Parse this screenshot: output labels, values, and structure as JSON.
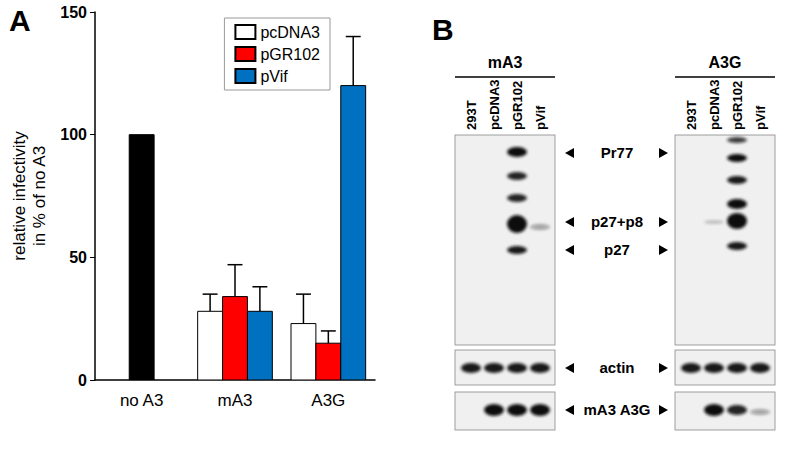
{
  "chart_data": {
    "type": "bar",
    "title": "A",
    "ylabel": "relative infectivity\nin % of no A3",
    "categories": [
      "no A3",
      "mA3",
      "A3G"
    ],
    "series": [
      {
        "color": "#000000",
        "values": [
          100,
          null,
          null
        ],
        "errors": [
          null,
          null,
          null
        ]
      },
      {
        "name": "pcDNA3",
        "color": "#ffffff",
        "values": [
          null,
          28,
          23
        ],
        "errors": [
          null,
          7,
          12
        ]
      },
      {
        "name": "pGR102",
        "color": "#ff0000",
        "values": [
          null,
          34,
          15
        ],
        "errors": [
          null,
          13,
          5
        ]
      },
      {
        "name": "pVif",
        "color": "#0070c0",
        "values": [
          null,
          28,
          120
        ],
        "errors": [
          null,
          10,
          20
        ]
      }
    ],
    "ylim": [
      0,
      150
    ],
    "yticks": [
      0,
      50,
      100,
      150
    ],
    "grid": false,
    "legend": "top-right"
  },
  "blot": {
    "title": "B",
    "panels": [
      {
        "name": "mA3",
        "lanes": [
          "293T",
          "pcDNA3",
          "pGR102",
          "pVif"
        ]
      },
      {
        "name": "A3G",
        "lanes": [
          "293T",
          "pcDNA3",
          "pGR102",
          "pVif"
        ]
      }
    ],
    "band_labels": [
      "Pr77",
      "p27+p8",
      "p27"
    ],
    "loading_label": "actin",
    "protein_label": "mA3 A3G"
  }
}
